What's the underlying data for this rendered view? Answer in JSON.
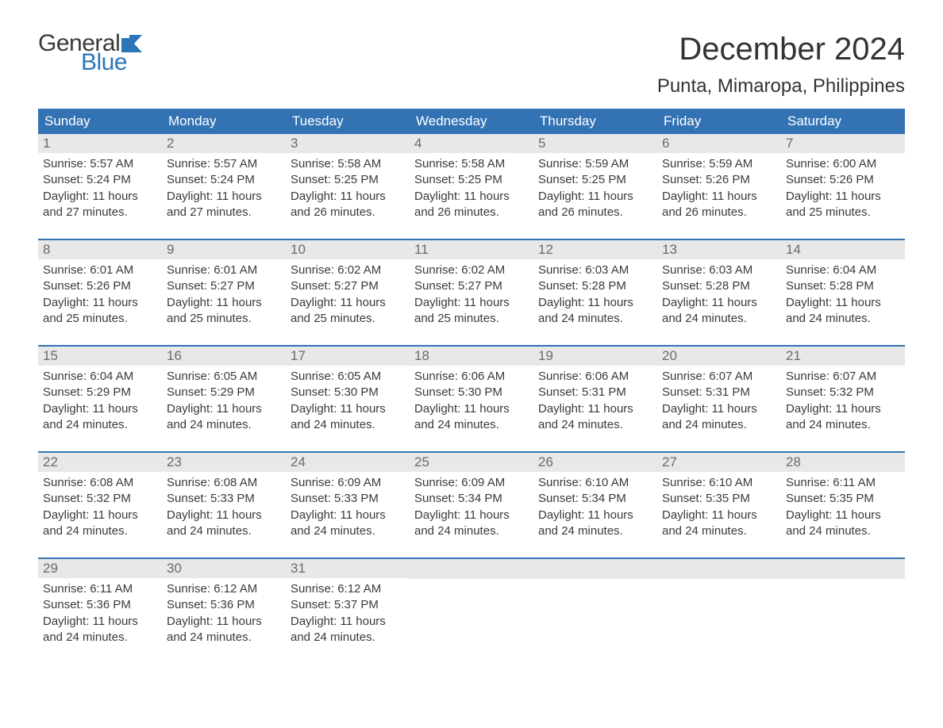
{
  "logo": {
    "word1": "General",
    "word2": "Blue"
  },
  "title": "December 2024",
  "location": "Punta, Mimaropa, Philippines",
  "colors": {
    "header_bg": "#3373b4",
    "header_text": "#ffffff",
    "daynum_bg": "#e8e8e8",
    "daynum_text": "#6b6b6b",
    "body_text": "#3a3a3a",
    "accent_line": "#3373b4",
    "logo_word1": "#3a3a3a",
    "logo_word2": "#2c75b8",
    "page_bg": "#ffffff"
  },
  "typography": {
    "title_fontsize": 40,
    "location_fontsize": 24,
    "weekday_fontsize": 17,
    "daynum_fontsize": 17,
    "body_fontsize": 15,
    "logo_fontsize": 30
  },
  "weekdays": [
    "Sunday",
    "Monday",
    "Tuesday",
    "Wednesday",
    "Thursday",
    "Friday",
    "Saturday"
  ],
  "weeks": [
    [
      {
        "n": "1",
        "sunrise": "5:57 AM",
        "sunset": "5:24 PM",
        "daylight": "11 hours and 27 minutes."
      },
      {
        "n": "2",
        "sunrise": "5:57 AM",
        "sunset": "5:24 PM",
        "daylight": "11 hours and 27 minutes."
      },
      {
        "n": "3",
        "sunrise": "5:58 AM",
        "sunset": "5:25 PM",
        "daylight": "11 hours and 26 minutes."
      },
      {
        "n": "4",
        "sunrise": "5:58 AM",
        "sunset": "5:25 PM",
        "daylight": "11 hours and 26 minutes."
      },
      {
        "n": "5",
        "sunrise": "5:59 AM",
        "sunset": "5:25 PM",
        "daylight": "11 hours and 26 minutes."
      },
      {
        "n": "6",
        "sunrise": "5:59 AM",
        "sunset": "5:26 PM",
        "daylight": "11 hours and 26 minutes."
      },
      {
        "n": "7",
        "sunrise": "6:00 AM",
        "sunset": "5:26 PM",
        "daylight": "11 hours and 25 minutes."
      }
    ],
    [
      {
        "n": "8",
        "sunrise": "6:01 AM",
        "sunset": "5:26 PM",
        "daylight": "11 hours and 25 minutes."
      },
      {
        "n": "9",
        "sunrise": "6:01 AM",
        "sunset": "5:27 PM",
        "daylight": "11 hours and 25 minutes."
      },
      {
        "n": "10",
        "sunrise": "6:02 AM",
        "sunset": "5:27 PM",
        "daylight": "11 hours and 25 minutes."
      },
      {
        "n": "11",
        "sunrise": "6:02 AM",
        "sunset": "5:27 PM",
        "daylight": "11 hours and 25 minutes."
      },
      {
        "n": "12",
        "sunrise": "6:03 AM",
        "sunset": "5:28 PM",
        "daylight": "11 hours and 24 minutes."
      },
      {
        "n": "13",
        "sunrise": "6:03 AM",
        "sunset": "5:28 PM",
        "daylight": "11 hours and 24 minutes."
      },
      {
        "n": "14",
        "sunrise": "6:04 AM",
        "sunset": "5:28 PM",
        "daylight": "11 hours and 24 minutes."
      }
    ],
    [
      {
        "n": "15",
        "sunrise": "6:04 AM",
        "sunset": "5:29 PM",
        "daylight": "11 hours and 24 minutes."
      },
      {
        "n": "16",
        "sunrise": "6:05 AM",
        "sunset": "5:29 PM",
        "daylight": "11 hours and 24 minutes."
      },
      {
        "n": "17",
        "sunrise": "6:05 AM",
        "sunset": "5:30 PM",
        "daylight": "11 hours and 24 minutes."
      },
      {
        "n": "18",
        "sunrise": "6:06 AM",
        "sunset": "5:30 PM",
        "daylight": "11 hours and 24 minutes."
      },
      {
        "n": "19",
        "sunrise": "6:06 AM",
        "sunset": "5:31 PM",
        "daylight": "11 hours and 24 minutes."
      },
      {
        "n": "20",
        "sunrise": "6:07 AM",
        "sunset": "5:31 PM",
        "daylight": "11 hours and 24 minutes."
      },
      {
        "n": "21",
        "sunrise": "6:07 AM",
        "sunset": "5:32 PM",
        "daylight": "11 hours and 24 minutes."
      }
    ],
    [
      {
        "n": "22",
        "sunrise": "6:08 AM",
        "sunset": "5:32 PM",
        "daylight": "11 hours and 24 minutes."
      },
      {
        "n": "23",
        "sunrise": "6:08 AM",
        "sunset": "5:33 PM",
        "daylight": "11 hours and 24 minutes."
      },
      {
        "n": "24",
        "sunrise": "6:09 AM",
        "sunset": "5:33 PM",
        "daylight": "11 hours and 24 minutes."
      },
      {
        "n": "25",
        "sunrise": "6:09 AM",
        "sunset": "5:34 PM",
        "daylight": "11 hours and 24 minutes."
      },
      {
        "n": "26",
        "sunrise": "6:10 AM",
        "sunset": "5:34 PM",
        "daylight": "11 hours and 24 minutes."
      },
      {
        "n": "27",
        "sunrise": "6:10 AM",
        "sunset": "5:35 PM",
        "daylight": "11 hours and 24 minutes."
      },
      {
        "n": "28",
        "sunrise": "6:11 AM",
        "sunset": "5:35 PM",
        "daylight": "11 hours and 24 minutes."
      }
    ],
    [
      {
        "n": "29",
        "sunrise": "6:11 AM",
        "sunset": "5:36 PM",
        "daylight": "11 hours and 24 minutes."
      },
      {
        "n": "30",
        "sunrise": "6:12 AM",
        "sunset": "5:36 PM",
        "daylight": "11 hours and 24 minutes."
      },
      {
        "n": "31",
        "sunrise": "6:12 AM",
        "sunset": "5:37 PM",
        "daylight": "11 hours and 24 minutes."
      },
      {
        "empty": true
      },
      {
        "empty": true
      },
      {
        "empty": true
      },
      {
        "empty": true
      }
    ]
  ],
  "labels": {
    "sunrise": "Sunrise:",
    "sunset": "Sunset:",
    "daylight": "Daylight:"
  }
}
